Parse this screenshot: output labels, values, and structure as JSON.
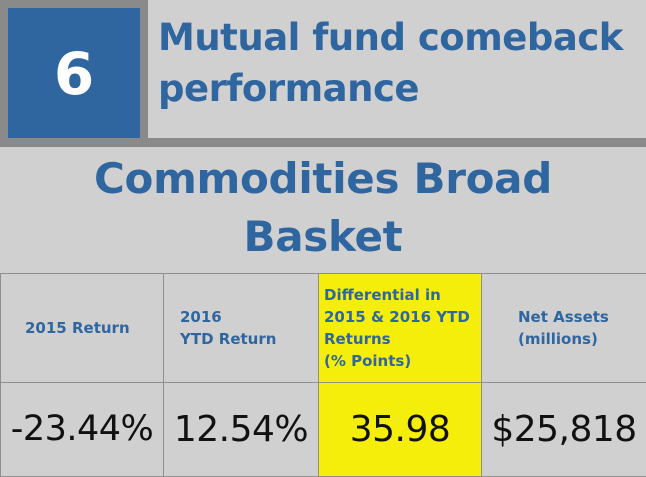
{
  "header": {
    "rank": "6",
    "title": "Mutual fund comeback\nperformance"
  },
  "fund": {
    "name": "Commodities Broad\nBasket"
  },
  "table": {
    "columns": [
      "2015 Return",
      "2016\nYTD Return",
      "Differential in\n2015 & 2016 YTD\nReturns\n(% Points)",
      "Net Assets\n(millions)"
    ],
    "values": [
      "-23.44%",
      "12.54%",
      "35.98",
      "$25,818"
    ]
  },
  "colors": {
    "brand_blue": "#2f66a0",
    "highlight_yellow": "#f4ee0a",
    "background_gray": "#d0d0d0",
    "frame_gray": "#8a8a8a"
  }
}
